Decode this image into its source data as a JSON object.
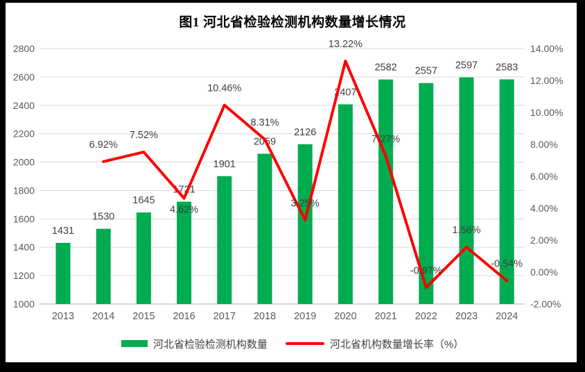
{
  "title": "图1  河北省检验检测机构数量增长情况",
  "legend": {
    "items": [
      {
        "label": "河北省检验检测机构数量",
        "marker": "bar",
        "color": "#00AC50"
      },
      {
        "label": "河北省机构数量增长率（%）",
        "marker": "line",
        "color": "#FF0000"
      }
    ]
  },
  "chart_data": {
    "type": "combo-bar-line",
    "title": "图1  河北省检验检测机构数量增长情况",
    "categories": [
      "2013",
      "2014",
      "2015",
      "2016",
      "2017",
      "2018",
      "2019",
      "2020",
      "2021",
      "2022",
      "2023",
      "2024"
    ],
    "series": [
      {
        "name": "河北省检验检测机构数量",
        "type": "bar",
        "axis": "left",
        "color": "#00AC50",
        "values": [
          1431,
          1530,
          1645,
          1721,
          1901,
          2059,
          2126,
          2407,
          2582,
          2557,
          2597,
          2583
        ],
        "point_labels": [
          "1431",
          "1530",
          "1645",
          "1721",
          "1901",
          "2059",
          "2126",
          "2407",
          "2582",
          "2557",
          "2597",
          "2583"
        ]
      },
      {
        "name": "河北省机构数量增长率（%）",
        "type": "line",
        "axis": "right",
        "color": "#FF0000",
        "values": [
          null,
          6.92,
          7.52,
          4.62,
          10.46,
          8.31,
          3.25,
          13.22,
          7.27,
          -0.97,
          1.56,
          -0.54
        ],
        "point_labels": [
          null,
          "6.92%",
          "7.52%",
          "4.62%",
          "10.46%",
          "8.31%",
          "3.25%",
          "13.22%",
          "7.27%",
          "-0.97%",
          "1.56%",
          "-0.54%"
        ],
        "labels_below_indices": [
          3
        ]
      }
    ],
    "left_axis": {
      "min": 1000,
      "max": 2800,
      "step": 200,
      "tick_labels": [
        "1000",
        "1200",
        "1400",
        "1600",
        "1800",
        "2000",
        "2200",
        "2400",
        "2600",
        "2800"
      ]
    },
    "right_axis": {
      "min": -2,
      "max": 14,
      "step": 2,
      "tick_labels": [
        "-2.00%",
        "0.00%",
        "2.00%",
        "4.00%",
        "6.00%",
        "8.00%",
        "10.00%",
        "12.00%",
        "14.00%"
      ]
    },
    "grid": true,
    "legend_position": "bottom",
    "colors": {
      "gridline": "#D9D9D9",
      "axis_line": "#BFBFBF",
      "tick_label": "#595959",
      "data_label": "#404040",
      "title": "#000000"
    }
  }
}
